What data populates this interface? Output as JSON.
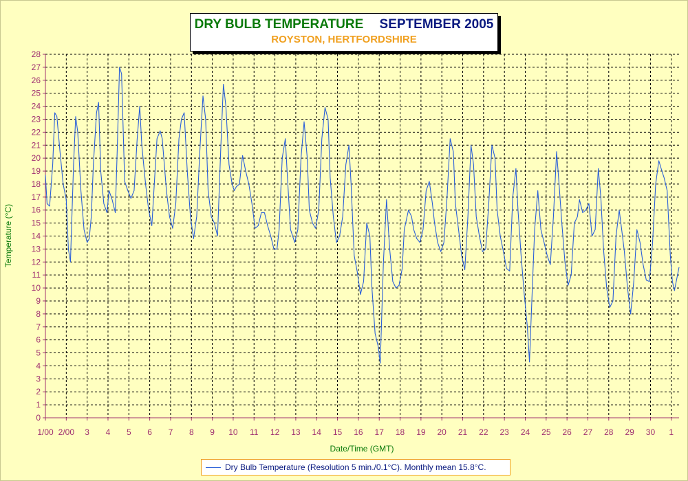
{
  "chart_data": {
    "type": "line",
    "title": "DRY BULB TEMPERATURE",
    "title_period": "SEPTEMBER 2005",
    "subtitle": "ROYSTON, HERTFORDSHIRE",
    "xlabel": "Date/Time (GMT)",
    "ylabel": "Temperature (°C)",
    "ylim": [
      0,
      28
    ],
    "xlim": [
      1,
      31.37
    ],
    "yticks": [
      0,
      1,
      2,
      3,
      4,
      5,
      6,
      7,
      8,
      9,
      10,
      11,
      12,
      13,
      14,
      15,
      16,
      17,
      18,
      19,
      20,
      21,
      22,
      23,
      24,
      25,
      26,
      27,
      28
    ],
    "xticks": [
      {
        "x": 1,
        "label": "1/00"
      },
      {
        "x": 2,
        "label": "2/00"
      },
      {
        "x": 3,
        "label": "3"
      },
      {
        "x": 4,
        "label": "4"
      },
      {
        "x": 5,
        "label": "5"
      },
      {
        "x": 6,
        "label": "6"
      },
      {
        "x": 7,
        "label": "7"
      },
      {
        "x": 8,
        "label": "8"
      },
      {
        "x": 9,
        "label": "9"
      },
      {
        "x": 10,
        "label": "10"
      },
      {
        "x": 11,
        "label": "11"
      },
      {
        "x": 12,
        "label": "12"
      },
      {
        "x": 13,
        "label": "13"
      },
      {
        "x": 14,
        "label": "14"
      },
      {
        "x": 15,
        "label": "15"
      },
      {
        "x": 16,
        "label": "16"
      },
      {
        "x": 17,
        "label": "17"
      },
      {
        "x": 18,
        "label": "18"
      },
      {
        "x": 19,
        "label": "19"
      },
      {
        "x": 20,
        "label": "20"
      },
      {
        "x": 21,
        "label": "21"
      },
      {
        "x": 22,
        "label": "22"
      },
      {
        "x": 23,
        "label": "23"
      },
      {
        "x": 24,
        "label": "24"
      },
      {
        "x": 25,
        "label": "25"
      },
      {
        "x": 26,
        "label": "26"
      },
      {
        "x": 27,
        "label": "27"
      },
      {
        "x": 28,
        "label": "28"
      },
      {
        "x": 29,
        "label": "29"
      },
      {
        "x": 30,
        "label": "30"
      },
      {
        "x": 31,
        "label": "1"
      }
    ],
    "grid": true,
    "legend": "bottom",
    "colors": {
      "line": "#2a5fd8",
      "axis": "#a03070",
      "grid": "#000000"
    },
    "series": [
      {
        "name": "Dry Bulb Temperature (Resolution 5 min./0.1°C). Monthly mean 15.8°C.",
        "x": [
          1.0,
          1.08,
          1.2,
          1.35,
          1.45,
          1.55,
          1.7,
          1.85,
          2.0,
          2.1,
          2.2,
          2.35,
          2.45,
          2.55,
          2.7,
          2.85,
          3.0,
          3.1,
          3.2,
          3.3,
          3.45,
          3.55,
          3.65,
          3.8,
          3.95,
          4.05,
          4.2,
          4.35,
          4.45,
          4.55,
          4.65,
          4.8,
          4.95,
          5.1,
          5.25,
          5.4,
          5.52,
          5.62,
          5.8,
          5.95,
          6.1,
          6.2,
          6.35,
          6.5,
          6.6,
          6.8,
          6.95,
          7.1,
          7.25,
          7.4,
          7.52,
          7.65,
          7.8,
          7.95,
          8.1,
          8.25,
          8.4,
          8.55,
          8.68,
          8.8,
          8.95,
          9.1,
          9.25,
          9.4,
          9.53,
          9.65,
          9.8,
          9.95,
          10.05,
          10.15,
          10.3,
          10.45,
          10.6,
          10.75,
          10.9,
          11.05,
          11.2,
          11.35,
          11.5,
          11.65,
          11.8,
          11.95,
          12.1,
          12.2,
          12.35,
          12.5,
          12.6,
          12.75,
          12.95,
          13.1,
          13.25,
          13.4,
          13.55,
          13.65,
          13.8,
          13.95,
          14.1,
          14.25,
          14.4,
          14.55,
          14.65,
          14.8,
          14.95,
          15.1,
          15.25,
          15.4,
          15.55,
          15.65,
          15.8,
          15.95,
          16.1,
          16.25,
          16.4,
          16.55,
          16.65,
          16.8,
          16.95,
          17.05,
          17.2,
          17.35,
          17.5,
          17.65,
          17.8,
          17.95,
          18.1,
          18.2,
          18.4,
          18.55,
          18.65,
          18.8,
          18.95,
          19.1,
          19.25,
          19.4,
          19.55,
          19.65,
          19.8,
          19.95,
          20.1,
          20.25,
          20.4,
          20.55,
          20.65,
          20.8,
          20.95,
          21.1,
          21.25,
          21.4,
          21.52,
          21.65,
          21.8,
          21.95,
          22.1,
          22.25,
          22.4,
          22.55,
          22.65,
          22.8,
          22.95,
          23.1,
          23.25,
          23.4,
          23.55,
          23.65,
          23.8,
          23.95,
          24.1,
          24.2,
          24.35,
          24.45,
          24.6,
          24.75,
          24.9,
          25.05,
          25.2,
          25.35,
          25.5,
          25.62,
          25.75,
          25.9,
          26.05,
          26.2,
          26.35,
          26.5,
          26.6,
          26.75,
          26.9,
          27.05,
          27.2,
          27.35,
          27.5,
          27.62,
          27.75,
          27.9,
          28.05,
          28.2,
          28.35,
          28.5,
          28.62,
          28.75,
          28.9,
          29.05,
          29.2,
          29.35,
          29.5,
          29.65,
          29.8,
          29.95,
          30.1,
          30.25,
          30.4,
          30.55,
          30.65,
          30.8,
          30.95,
          31.05,
          31.15,
          31.37
        ],
        "y": [
          18.7,
          16.5,
          16.3,
          19.5,
          23.5,
          23.2,
          20.5,
          18.0,
          16.8,
          13.0,
          12.0,
          19.5,
          23.2,
          22.0,
          17.5,
          14.5,
          13.5,
          13.8,
          15.5,
          19.5,
          23.5,
          24.3,
          19.0,
          16.5,
          15.8,
          17.5,
          16.8,
          15.8,
          21.0,
          27.0,
          26.5,
          18.2,
          17.5,
          16.9,
          17.5,
          21.5,
          24.0,
          21.0,
          18.0,
          16.0,
          14.8,
          17.5,
          21.5,
          22.1,
          21.5,
          17.5,
          15.5,
          14.6,
          16.5,
          21.5,
          23.0,
          23.5,
          19.0,
          15.5,
          13.8,
          15.5,
          20.5,
          24.8,
          23.0,
          17.5,
          15.5,
          15.0,
          14.0,
          20.5,
          25.7,
          24.0,
          19.5,
          18.0,
          17.5,
          17.8,
          18.0,
          20.2,
          19.0,
          18.0,
          16.5,
          14.6,
          14.8,
          15.8,
          15.8,
          14.8,
          14.0,
          13.0,
          13.0,
          14.5,
          20.0,
          21.5,
          18.5,
          14.5,
          13.5,
          14.5,
          20.0,
          22.8,
          20.0,
          16.0,
          15.0,
          14.6,
          16.0,
          21.5,
          23.9,
          23.0,
          18.5,
          15.5,
          13.5,
          14.0,
          15.5,
          19.5,
          21.0,
          18.0,
          12.5,
          11.2,
          9.5,
          10.5,
          15.0,
          14.0,
          10.0,
          6.5,
          5.5,
          4.2,
          12.0,
          16.8,
          13.0,
          10.5,
          10.0,
          10.2,
          11.5,
          14.5,
          16.0,
          15.5,
          14.5,
          13.8,
          13.5,
          14.5,
          17.5,
          18.2,
          16.5,
          15.0,
          13.5,
          12.8,
          13.5,
          17.0,
          21.5,
          20.5,
          16.5,
          14.5,
          12.5,
          11.4,
          15.5,
          21.0,
          19.5,
          15.5,
          14.0,
          12.8,
          13.0,
          16.5,
          21.0,
          20.0,
          16.0,
          14.0,
          12.8,
          11.5,
          11.3,
          17.0,
          19.2,
          16.0,
          12.5,
          9.5,
          7.0,
          4.3,
          10.5,
          14.5,
          17.5,
          14.5,
          13.5,
          12.5,
          11.8,
          15.5,
          20.5,
          18.0,
          15.0,
          12.0,
          10.2,
          11.0,
          15.0,
          15.5,
          16.8,
          15.8,
          16.0,
          16.5,
          14.0,
          14.5,
          19.2,
          17.0,
          13.0,
          10.0,
          8.5,
          9.0,
          14.0,
          16.0,
          14.5,
          12.8,
          10.0,
          8.0,
          10.5,
          14.5,
          13.5,
          11.8,
          10.6,
          10.5,
          13.5,
          18.0,
          19.8,
          19.0,
          18.5,
          17.5,
          12.5,
          10.5,
          9.8,
          11.6
        ]
      }
    ]
  }
}
